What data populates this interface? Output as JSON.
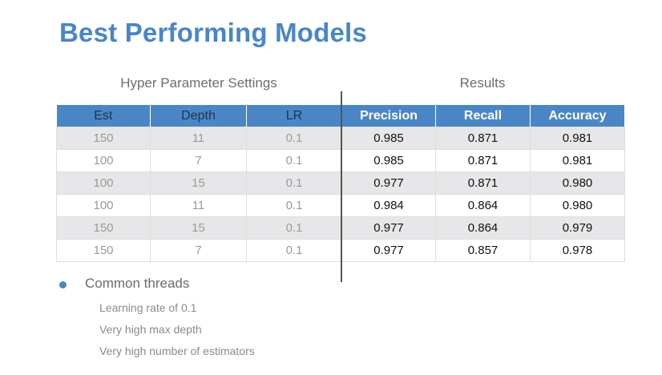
{
  "title": "Best Performing Models",
  "headings": {
    "hyper": "Hyper Parameter Settings",
    "results": "Results"
  },
  "columns": [
    "Est",
    "Depth",
    "LR",
    "Precision",
    "Recall",
    "Accuracy"
  ],
  "rows": [
    [
      "150",
      "11",
      "0.1",
      "0.985",
      "0.871",
      "0.981"
    ],
    [
      "100",
      "7",
      "0.1",
      "0.985",
      "0.871",
      "0.981"
    ],
    [
      "100",
      "15",
      "0.1",
      "0.977",
      "0.871",
      "0.980"
    ],
    [
      "100",
      "11",
      "0.1",
      "0.984",
      "0.864",
      "0.980"
    ],
    [
      "150",
      "15",
      "0.1",
      "0.977",
      "0.864",
      "0.979"
    ],
    [
      "150",
      "7",
      "0.1",
      "0.977",
      "0.857",
      "0.978"
    ]
  ],
  "bullet": {
    "text": "Common threads",
    "items": [
      "Learning rate of 0.1",
      "Very high max depth",
      "Very high number of estimators"
    ]
  },
  "colors": {
    "accent": "#4a86c5",
    "stripe": "#e7e7e9"
  }
}
